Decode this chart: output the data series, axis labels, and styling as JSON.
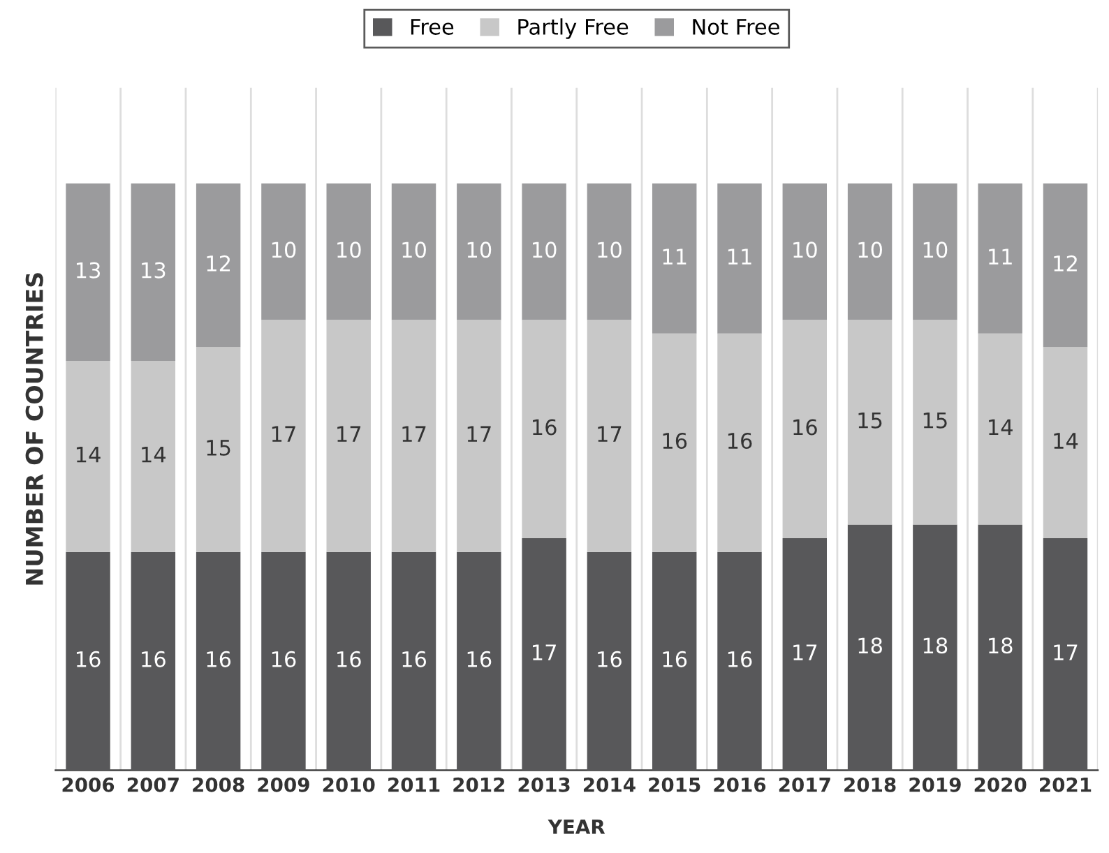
{
  "chart_data": {
    "type": "bar",
    "stacked": true,
    "xlabel": "YEAR",
    "ylabel": "NUMBER OF COUNTRIES",
    "categories": [
      "2006",
      "2007",
      "2008",
      "2009",
      "2010",
      "2011",
      "2012",
      "2013",
      "2014",
      "2015",
      "2016",
      "2017",
      "2018",
      "2019",
      "2020",
      "2021"
    ],
    "series": [
      {
        "name": "Free",
        "color": "#58585a",
        "values": [
          16,
          16,
          16,
          16,
          16,
          16,
          16,
          17,
          16,
          16,
          16,
          17,
          18,
          18,
          18,
          17
        ]
      },
      {
        "name": "Partly Free",
        "color": "#c8c8c8",
        "values": [
          14,
          14,
          15,
          17,
          17,
          17,
          17,
          16,
          17,
          16,
          16,
          16,
          15,
          15,
          14,
          14
        ]
      },
      {
        "name": "Not Free",
        "color": "#9b9b9d",
        "values": [
          13,
          13,
          12,
          10,
          10,
          10,
          10,
          10,
          10,
          11,
          11,
          10,
          10,
          10,
          11,
          12
        ]
      }
    ],
    "ylim": [
      0,
      50
    ],
    "tick_labels": "x",
    "data_labels": true,
    "legend": "top",
    "grid": "x"
  }
}
